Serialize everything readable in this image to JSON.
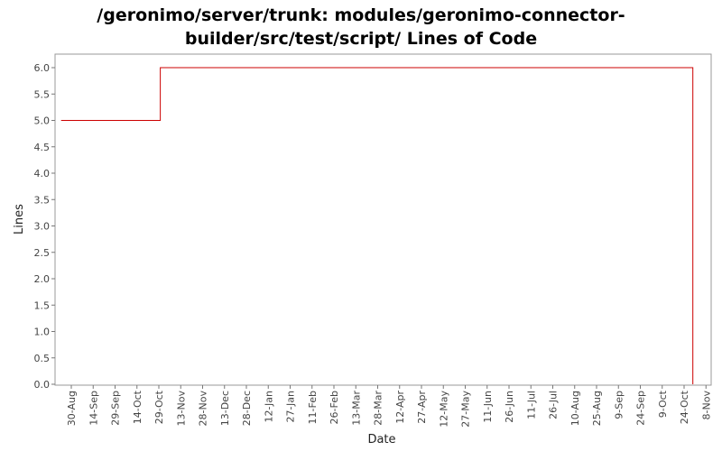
{
  "chart_data": {
    "type": "line",
    "title_lines": [
      "/geronimo/server/trunk: modules/geronimo-connector-",
      "builder/src/test/script/ Lines of Code"
    ],
    "xlabel": "Date",
    "ylabel": "Lines",
    "ylim": [
      0.0,
      6.2
    ],
    "y_ticks": [
      "0.0",
      "0.5",
      "1.0",
      "1.5",
      "2.0",
      "2.5",
      "3.0",
      "3.5",
      "4.0",
      "4.5",
      "5.0",
      "5.5",
      "6.0"
    ],
    "x_ticks": [
      "30-Aug",
      "14-Sep",
      "29-Sep",
      "14-Oct",
      "29-Oct",
      "13-Nov",
      "28-Nov",
      "13-Dec",
      "28-Dec",
      "12-Jan",
      "27-Jan",
      "11-Feb",
      "26-Feb",
      "13-Mar",
      "28-Mar",
      "12-Apr",
      "27-Apr",
      "12-May",
      "27-May",
      "11-Jun",
      "26-Jun",
      "11-Jul",
      "26-Jul",
      "10-Aug",
      "25-Aug",
      "9-Sep",
      "24-Sep",
      "9-Oct",
      "24-Oct",
      "8-Nov"
    ],
    "grid": false,
    "series": [
      {
        "color": "#cc0000",
        "step": true,
        "points": [
          {
            "x": "2005-08-23",
            "y": 5
          },
          {
            "x": "2005-10-30",
            "y": 6
          },
          {
            "x": "2006-10-30",
            "y": 6
          },
          {
            "x": "2006-10-30",
            "y": 0
          }
        ]
      }
    ]
  }
}
